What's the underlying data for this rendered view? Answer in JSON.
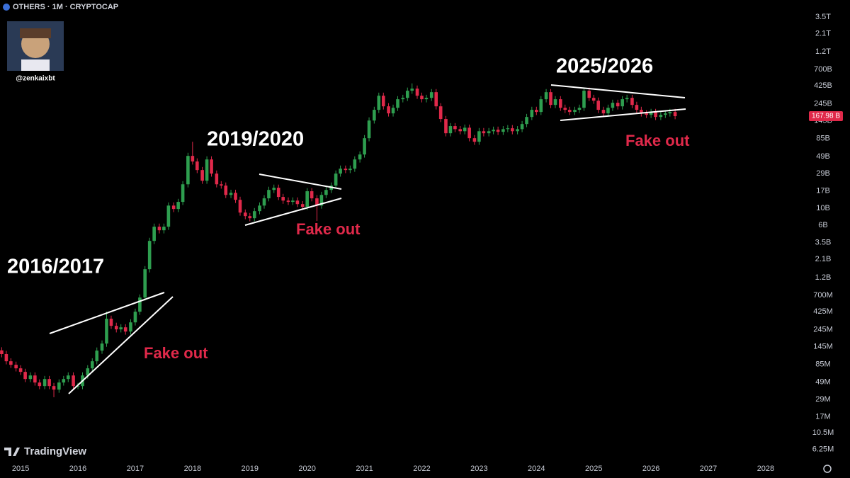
{
  "chart_data": {
    "type": "candlestick",
    "header": "OTHERS · 1M · CRYPTOCAP",
    "author": "@zenkaixbt",
    "brand": "TradingView",
    "annotations": [
      "2016/2017",
      "2019/2020",
      "2025/2026",
      "Fake out",
      "Fake out",
      "Fake out"
    ],
    "log_scale": true,
    "grid": false,
    "up_color": "#2e9e4f",
    "down_color": "#e0294a",
    "xlim": [
      2014.64,
      2028.73
    ],
    "xticks": [
      2015,
      2016,
      2017,
      2018,
      2019,
      2020,
      2021,
      2022,
      2023,
      2024,
      2025,
      2026,
      2027,
      2028
    ],
    "ylim": [
      0.0045,
      5870
    ],
    "yticks": [
      {
        "value": 3500,
        "label": "3.5T"
      },
      {
        "value": 2100,
        "label": "2.1T"
      },
      {
        "value": 1200,
        "label": "1.2T"
      },
      {
        "value": 700,
        "label": "700B"
      },
      {
        "value": 425,
        "label": "425B"
      },
      {
        "value": 245,
        "label": "245B"
      },
      {
        "value": 145,
        "label": "145B"
      },
      {
        "value": 85,
        "label": "85B"
      },
      {
        "value": 49,
        "label": "49B"
      },
      {
        "value": 29,
        "label": "29B"
      },
      {
        "value": 17,
        "label": "17B"
      },
      {
        "value": 10,
        "label": "10B"
      },
      {
        "value": 6,
        "label": "6B"
      },
      {
        "value": 3.5,
        "label": "3.5B"
      },
      {
        "value": 2.1,
        "label": "2.1B"
      },
      {
        "value": 1.2,
        "label": "1.2B"
      },
      {
        "value": 0.7,
        "label": "700M"
      },
      {
        "value": 0.425,
        "label": "425M"
      },
      {
        "value": 0.245,
        "label": "245M"
      },
      {
        "value": 0.145,
        "label": "145M"
      },
      {
        "value": 0.085,
        "label": "85M"
      },
      {
        "value": 0.049,
        "label": "49M"
      },
      {
        "value": 0.029,
        "label": "29M"
      },
      {
        "value": 0.017,
        "label": "17M"
      },
      {
        "value": 0.0105,
        "label": "10.5M"
      },
      {
        "value": 0.00625,
        "label": "6.25M"
      }
    ],
    "last_price_label": "167.98 B",
    "x": [
      2014.67,
      2014.75,
      2014.83,
      2014.92,
      2015.0,
      2015.08,
      2015.17,
      2015.25,
      2015.33,
      2015.42,
      2015.5,
      2015.58,
      2015.67,
      2015.75,
      2015.83,
      2015.92,
      2016.0,
      2016.08,
      2016.17,
      2016.25,
      2016.33,
      2016.42,
      2016.5,
      2016.58,
      2016.67,
      2016.75,
      2016.83,
      2016.92,
      2017.0,
      2017.08,
      2017.17,
      2017.25,
      2017.33,
      2017.42,
      2017.5,
      2017.58,
      2017.67,
      2017.75,
      2017.83,
      2017.92,
      2018.0,
      2018.08,
      2018.17,
      2018.25,
      2018.33,
      2018.42,
      2018.5,
      2018.58,
      2018.67,
      2018.75,
      2018.83,
      2018.92,
      2019.0,
      2019.08,
      2019.17,
      2019.25,
      2019.33,
      2019.42,
      2019.5,
      2019.58,
      2019.67,
      2019.75,
      2019.83,
      2019.92,
      2020.0,
      2020.08,
      2020.17,
      2020.25,
      2020.33,
      2020.42,
      2020.5,
      2020.58,
      2020.67,
      2020.75,
      2020.83,
      2020.92,
      2021.0,
      2021.08,
      2021.17,
      2021.25,
      2021.33,
      2021.42,
      2021.5,
      2021.58,
      2021.67,
      2021.75,
      2021.83,
      2021.92,
      2022.0,
      2022.08,
      2022.17,
      2022.25,
      2022.33,
      2022.42,
      2022.5,
      2022.58,
      2022.67,
      2022.75,
      2022.83,
      2022.92,
      2023.0,
      2023.08,
      2023.17,
      2023.25,
      2023.33,
      2023.42,
      2023.5,
      2023.58,
      2023.67,
      2023.75,
      2023.83,
      2023.92,
      2024.0,
      2024.08,
      2024.17,
      2024.25,
      2024.33,
      2024.42,
      2024.5,
      2024.58,
      2024.67,
      2024.75,
      2024.83,
      2024.92,
      2025.0,
      2025.08,
      2025.17,
      2025.25,
      2025.33,
      2025.42,
      2025.5,
      2025.58,
      2025.67,
      2025.75,
      2025.83,
      2025.92,
      2026.0,
      2026.08,
      2026.17,
      2026.25,
      2026.33,
      2026.42
    ],
    "open": [
      0.13,
      0.116,
      0.0931,
      0.0836,
      0.075,
      0.0673,
      0.0541,
      0.0603,
      0.0486,
      0.0436,
      0.0541,
      0.0436,
      0.0391,
      0.0486,
      0.0541,
      0.0603,
      0.0436,
      0.0436,
      0.0603,
      0.075,
      0.0931,
      0.129,
      0.16,
      0.342,
      0.275,
      0.247,
      0.263,
      0.231,
      0.306,
      0.424,
      0.654,
      1.556,
      3.7,
      5.71,
      5.12,
      5.71,
      10.9,
      9.81,
      12.2,
      20.9,
      49.8,
      42,
      32.3,
      23.3,
      44.7,
      29,
      20.9,
      20.1,
      15.1,
      16.1,
      13,
      8.8,
      7.9,
      7.4,
      9.19,
      10.9,
      13.6,
      17.6,
      18.8,
      14.2,
      12.7,
      12.2,
      12.7,
      11.4,
      10.5,
      16.9,
      13.6,
      10.9,
      15.1,
      17.6,
      20.1,
      29,
      33.7,
      32.3,
      33.7,
      44.7,
      52,
      85.6,
      147,
      204,
      314,
      227,
      183,
      217,
      282,
      294,
      366,
      390,
      314,
      282,
      294,
      350,
      227,
      154,
      99.6,
      124,
      113,
      106,
      118,
      85.6,
      76.8,
      106,
      99.6,
      106,
      111,
      104,
      113,
      116,
      106,
      113,
      132,
      164,
      204,
      191,
      282,
      350,
      237,
      282,
      217,
      204,
      191,
      204,
      217,
      366,
      294,
      270,
      204,
      183,
      217,
      253,
      227,
      282,
      294,
      237,
      204,
      183,
      175,
      191,
      164,
      175,
      183,
      191
    ],
    "high": [
      0.143,
      0.128,
      0.102,
      0.092,
      0.0825,
      0.074,
      0.0663,
      0.0663,
      0.0535,
      0.0595,
      0.0595,
      0.048,
      0.0535,
      0.0595,
      0.0663,
      0.0663,
      0.048,
      0.0663,
      0.0825,
      0.102,
      0.142,
      0.176,
      0.425,
      0.376,
      0.303,
      0.289,
      0.289,
      0.337,
      0.466,
      0.719,
      1.71,
      4.07,
      6.28,
      6.28,
      6.28,
      12,
      12,
      13.4,
      23,
      54.8,
      76.8,
      46.2,
      35.5,
      49.2,
      49.2,
      31.9,
      23,
      22.1,
      17.7,
      17.7,
      14.3,
      9.68,
      8.69,
      10.1,
      12,
      15,
      19.4,
      20.7,
      20.7,
      15.6,
      14,
      14,
      14,
      12.5,
      18.6,
      18.6,
      15,
      16.6,
      19.4,
      22.1,
      31.9,
      37.1,
      37.1,
      37.1,
      49.2,
      57.2,
      94.2,
      162,
      224,
      345,
      345,
      250,
      239,
      310,
      323,
      403,
      458,
      429,
      345,
      323,
      385,
      385,
      250,
      169,
      136,
      136,
      124,
      130,
      130,
      94.2,
      117,
      117,
      117,
      122,
      122,
      124,
      128,
      128,
      124,
      145,
      180,
      224,
      224,
      310,
      385,
      385,
      310,
      310,
      239,
      224,
      224,
      239,
      403,
      403,
      323,
      297,
      224,
      239,
      278,
      278,
      310,
      323,
      323,
      261,
      224,
      201,
      210,
      210,
      193,
      201,
      210,
      210
    ],
    "low": [
      0.105,
      0.0846,
      0.076,
      0.0682,
      0.0612,
      0.0492,
      0.0492,
      0.0442,
      0.0396,
      0.0396,
      0.0396,
      0.031,
      0.0355,
      0.0442,
      0.0492,
      0.0396,
      0.0396,
      0.0396,
      0.0548,
      0.0682,
      0.0846,
      0.117,
      0.145,
      0.25,
      0.225,
      0.225,
      0.21,
      0.21,
      0.278,
      0.385,
      0.595,
      1.41,
      3.36,
      4.65,
      4.65,
      5.19,
      8.92,
      8.92,
      11.1,
      19,
      38.2,
      29.4,
      21.2,
      21.2,
      26.4,
      19,
      18.3,
      13.7,
      13.7,
      11.8,
      8,
      7.18,
      6.73,
      6.73,
      8.35,
      9.91,
      12.4,
      16,
      12.9,
      11.5,
      11.1,
      11.1,
      10.4,
      9.55,
      9.55,
      12.4,
      6.8,
      9.91,
      13.7,
      16,
      18.3,
      26.4,
      29.4,
      29.4,
      30.6,
      40.6,
      47.3,
      77.8,
      134,
      185,
      206,
      166,
      166,
      197,
      256,
      267,
      333,
      285,
      256,
      256,
      267,
      206,
      140,
      90.5,
      90.5,
      103,
      96.4,
      96.4,
      77.8,
      69.8,
      69.8,
      90.5,
      90.5,
      96.4,
      94.5,
      94.5,
      103,
      96.4,
      96.4,
      103,
      120,
      149,
      174,
      174,
      256,
      215,
      215,
      197,
      185,
      174,
      174,
      185,
      197,
      267,
      245,
      185,
      166,
      166,
      197,
      206,
      206,
      256,
      215,
      185,
      166,
      159,
      159,
      149,
      149,
      159,
      166,
      153
    ],
    "close": [
      0.116,
      0.0931,
      0.0836,
      0.075,
      0.0673,
      0.0541,
      0.0603,
      0.0486,
      0.0436,
      0.0541,
      0.0436,
      0.0391,
      0.0486,
      0.0541,
      0.0603,
      0.0436,
      0.0436,
      0.0603,
      0.075,
      0.0931,
      0.129,
      0.16,
      0.342,
      0.275,
      0.247,
      0.263,
      0.231,
      0.306,
      0.424,
      0.654,
      1.556,
      3.7,
      5.71,
      5.12,
      5.71,
      10.9,
      9.81,
      12.2,
      20.9,
      49.8,
      42,
      32.3,
      23.3,
      44.7,
      29,
      20.9,
      20.1,
      15.1,
      16.1,
      13,
      8.8,
      7.9,
      7.4,
      9.19,
      10.9,
      13.6,
      17.6,
      18.8,
      14.2,
      12.7,
      12.2,
      12.7,
      11.4,
      10.5,
      16.9,
      13.6,
      10.9,
      15.1,
      17.6,
      20.1,
      29,
      33.7,
      32.3,
      33.7,
      44.7,
      52,
      85.6,
      147,
      204,
      314,
      227,
      183,
      217,
      282,
      294,
      366,
      390,
      314,
      282,
      294,
      350,
      227,
      154,
      99.6,
      124,
      113,
      106,
      118,
      85.6,
      76.8,
      106,
      99.6,
      106,
      111,
      104,
      113,
      116,
      106,
      113,
      132,
      164,
      204,
      191,
      282,
      350,
      237,
      282,
      217,
      204,
      191,
      204,
      217,
      366,
      294,
      270,
      204,
      183,
      217,
      253,
      227,
      282,
      294,
      237,
      204,
      183,
      175,
      191,
      164,
      175,
      183,
      191,
      167.98
    ]
  }
}
